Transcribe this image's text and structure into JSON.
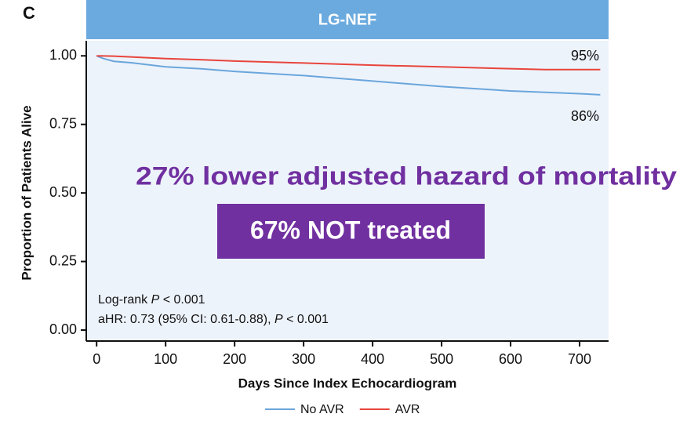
{
  "panel_label": "C",
  "chart_data": {
    "type": "line",
    "title": "LG-NEF",
    "x_label": "Days Since Index Echocardiogram",
    "y_label": "Proportion of Patients Alive",
    "xlim": [
      -15,
      742
    ],
    "ylim": [
      -0.04,
      1.055
    ],
    "xticks": [
      0,
      100,
      200,
      300,
      400,
      500,
      600,
      700
    ],
    "yticks": [
      {
        "value": 0,
        "label": "0.00"
      },
      {
        "value": 0.25,
        "label": "0.25"
      },
      {
        "value": 0.5,
        "label": "0.50"
      },
      {
        "value": 0.75,
        "label": "0.75"
      },
      {
        "value": 1,
        "label": "1.00"
      }
    ],
    "series": [
      {
        "name": "No AVR",
        "color": "#6aa6dc",
        "x": [
          0,
          10,
          25,
          50,
          100,
          150,
          200,
          300,
          400,
          500,
          600,
          700,
          730
        ],
        "values": [
          1.0,
          0.99,
          0.98,
          0.975,
          0.96,
          0.953,
          0.943,
          0.928,
          0.908,
          0.888,
          0.872,
          0.862,
          0.858
        ]
      },
      {
        "name": "AVR",
        "color": "#e8453c",
        "x": [
          0,
          25,
          50,
          100,
          150,
          200,
          300,
          400,
          500,
          600,
          650,
          700,
          730
        ],
        "values": [
          1.0,
          0.999,
          0.996,
          0.99,
          0.986,
          0.981,
          0.974,
          0.966,
          0.96,
          0.953,
          0.95,
          0.95,
          0.95
        ]
      }
    ],
    "end_labels": [
      "95%",
      "86%"
    ],
    "headline": "27% lower adjusted hazard of mortality",
    "boxed_note": "67% NOT treated",
    "stats": [
      [
        "Log-rank ",
        "P",
        " < 0.001"
      ],
      [
        "aHR: 0.73 (95% CI: 0.61-0.88), ",
        "P",
        " < 0.001"
      ]
    ],
    "legend": "bottom",
    "background": "#edf3fb",
    "header_color": "#6aaade",
    "note_color": "#7030a0"
  }
}
